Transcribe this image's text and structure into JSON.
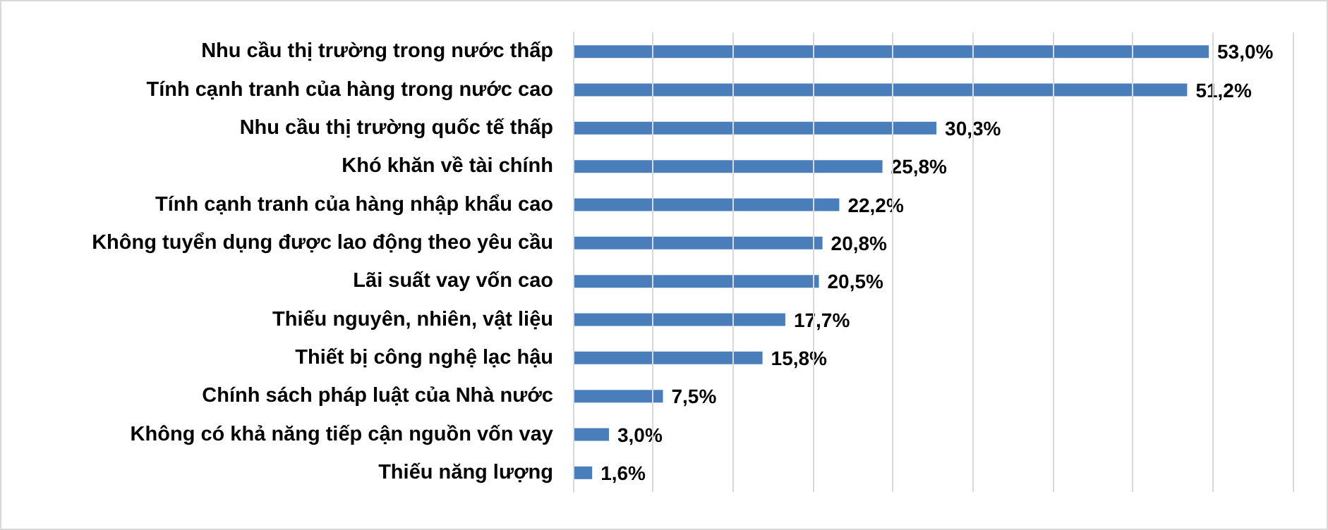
{
  "chart_data": {
    "type": "bar",
    "orientation": "horizontal",
    "categories": [
      "Nhu cầu thị trường trong nước thấp",
      "Tính cạnh tranh của hàng trong nước cao",
      "Nhu cầu thị trường quốc tế thấp",
      "Khó khăn về tài chính",
      "Tính cạnh tranh của hàng nhập khẩu cao",
      "Không tuyển dụng được lao động theo yêu cầu",
      "Lãi suất vay vốn cao",
      "Thiếu nguyên, nhiên, vật liệu",
      "Thiết bị công nghệ lạc hậu",
      "Chính sách pháp luật của Nhà nước",
      "Không có khả năng tiếp cận nguồn vốn vay",
      "Thiếu năng lượng"
    ],
    "values": [
      53.0,
      51.2,
      30.3,
      25.8,
      22.2,
      20.8,
      20.5,
      17.7,
      15.8,
      7.5,
      3.0,
      1.6
    ],
    "value_labels": [
      "53,0%",
      "51,2%",
      "30,3%",
      "25,8%",
      "22,2%",
      "20,8%",
      "20,5%",
      "17,7%",
      "15,8%",
      "7,5%",
      "3,0%",
      "1,6%"
    ],
    "color": "#4a7ebb",
    "xlim": [
      0,
      60
    ],
    "xticks": [
      {
        "value": 0,
        "label": null
      },
      {
        "value": 6.67,
        "label": null
      },
      {
        "value": 13.33,
        "label": null
      },
      {
        "value": 20,
        "label": null
      },
      {
        "value": 26.67,
        "label": null
      },
      {
        "value": 33.33,
        "label": null
      },
      {
        "value": 40,
        "label": null
      },
      {
        "value": 46.67,
        "label": null
      },
      {
        "value": 53.33,
        "label": null
      },
      {
        "value": 60,
        "label": null
      }
    ],
    "grid": "x",
    "tick_labels": "y"
  }
}
